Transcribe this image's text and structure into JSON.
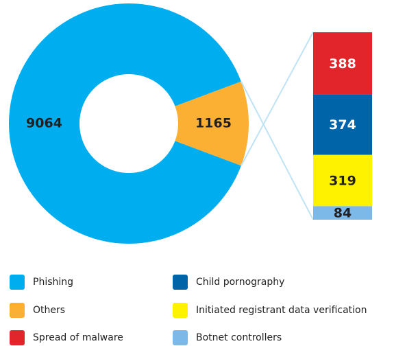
{
  "chart_data": {
    "type": "pie",
    "categories": [
      "Phishing",
      "Others"
    ],
    "values": [
      9064,
      1165
    ],
    "colors": [
      "#00aeef",
      "#fbb034"
    ],
    "breakdown": {
      "categories": [
        "Spread of malware",
        "Child pornography",
        "Initiated registrant data verification",
        "Botnet controllers"
      ],
      "values": [
        388,
        374,
        319,
        84
      ],
      "colors": [
        "#e2252b",
        "#0064a8",
        "#fff200",
        "#7cb9e8"
      ]
    }
  }
}
